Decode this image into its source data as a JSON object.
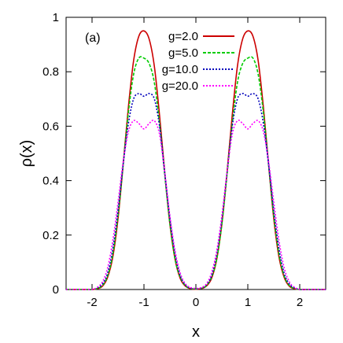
{
  "chart_data": {
    "type": "line",
    "title": "",
    "annotation": "(a)",
    "xlabel": "x",
    "ylabel": "ρ(x)",
    "xlim": [
      -2.5,
      2.5
    ],
    "ylim": [
      0,
      1
    ],
    "xticks": [
      -2,
      -1,
      0,
      1,
      2
    ],
    "xtick_labels": [
      "-2",
      "-1",
      "0",
      "1",
      "2"
    ],
    "yticks": [
      0,
      0.2,
      0.4,
      0.6,
      0.8,
      1
    ],
    "ytick_labels": [
      "0",
      "0.2",
      "0.4",
      "0.6",
      "0.8",
      "1"
    ],
    "grid": false,
    "legend_position": "top-center",
    "x": [
      -2.5,
      -2.4,
      -2.3,
      -2.2,
      -2.1,
      -2.0,
      -1.9,
      -1.8,
      -1.7,
      -1.6,
      -1.5,
      -1.4,
      -1.3,
      -1.2,
      -1.1,
      -1.0,
      -0.9,
      -0.8,
      -0.7,
      -0.6,
      -0.5,
      -0.4,
      -0.3,
      -0.2,
      -0.1,
      0.0,
      0.1,
      0.2,
      0.3,
      0.4,
      0.5,
      0.6,
      0.7,
      0.8,
      0.9,
      1.0,
      1.1,
      1.2,
      1.3,
      1.4,
      1.5,
      1.6,
      1.7,
      1.8,
      1.9,
      2.0,
      2.1,
      2.2,
      2.3,
      2.4,
      2.5
    ],
    "series": [
      {
        "name": "g=2.0",
        "color": "#cc0000",
        "dash": "solid",
        "values": [
          0,
          0,
          0,
          0,
          0,
          0,
          0.003,
          0.012,
          0.045,
          0.12,
          0.26,
          0.46,
          0.67,
          0.84,
          0.93,
          0.95,
          0.92,
          0.82,
          0.64,
          0.43,
          0.24,
          0.11,
          0.04,
          0.012,
          0.003,
          0.001,
          0.003,
          0.012,
          0.04,
          0.11,
          0.24,
          0.43,
          0.64,
          0.82,
          0.92,
          0.95,
          0.93,
          0.84,
          0.67,
          0.46,
          0.26,
          0.12,
          0.045,
          0.012,
          0.003,
          0,
          0,
          0,
          0,
          0,
          0
        ]
      },
      {
        "name": "g=5.0",
        "color": "#00cc00",
        "dash": "dashed",
        "values": [
          0,
          0,
          0,
          0,
          0,
          0,
          0.004,
          0.015,
          0.05,
          0.13,
          0.27,
          0.46,
          0.65,
          0.79,
          0.85,
          0.85,
          0.83,
          0.76,
          0.61,
          0.42,
          0.24,
          0.11,
          0.045,
          0.014,
          0.004,
          0.002,
          0.004,
          0.014,
          0.045,
          0.11,
          0.24,
          0.42,
          0.61,
          0.76,
          0.83,
          0.85,
          0.85,
          0.79,
          0.65,
          0.46,
          0.27,
          0.13,
          0.05,
          0.015,
          0.004,
          0,
          0,
          0,
          0,
          0,
          0
        ]
      },
      {
        "name": "g=10.0",
        "color": "#0000bb",
        "dash": "dotted",
        "values": [
          0,
          0,
          0,
          0,
          0,
          0,
          0.006,
          0.02,
          0.06,
          0.15,
          0.29,
          0.46,
          0.61,
          0.7,
          0.72,
          0.71,
          0.72,
          0.7,
          0.6,
          0.43,
          0.26,
          0.13,
          0.05,
          0.017,
          0.005,
          0.003,
          0.005,
          0.017,
          0.05,
          0.13,
          0.26,
          0.43,
          0.6,
          0.7,
          0.72,
          0.71,
          0.72,
          0.7,
          0.61,
          0.46,
          0.29,
          0.15,
          0.06,
          0.02,
          0.006,
          0,
          0,
          0,
          0,
          0,
          0
        ]
      },
      {
        "name": "g=20.0",
        "color": "#ff00ff",
        "dash": "dotted",
        "values": [
          0,
          0,
          0,
          0,
          0,
          0,
          0.008,
          0.028,
          0.08,
          0.18,
          0.32,
          0.47,
          0.58,
          0.62,
          0.61,
          0.59,
          0.61,
          0.62,
          0.57,
          0.43,
          0.27,
          0.14,
          0.06,
          0.02,
          0.007,
          0.004,
          0.007,
          0.02,
          0.06,
          0.14,
          0.27,
          0.43,
          0.57,
          0.62,
          0.61,
          0.59,
          0.61,
          0.62,
          0.58,
          0.47,
          0.32,
          0.18,
          0.08,
          0.028,
          0.008,
          0,
          0,
          0,
          0,
          0,
          0
        ]
      }
    ]
  }
}
